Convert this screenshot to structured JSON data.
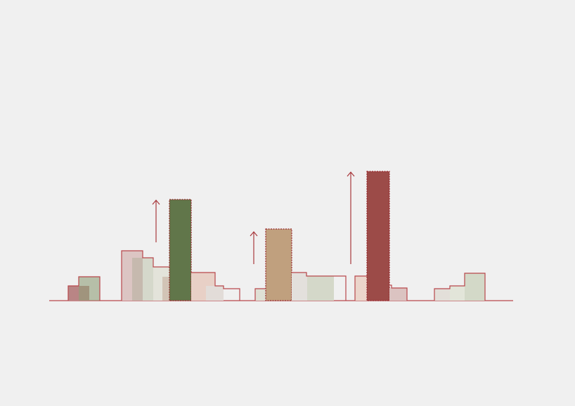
{
  "colors": {
    "background": "#f0f0f0",
    "outline": "#b8474b",
    "tower_green": "#61764a",
    "tower_tan": "#c0a07e",
    "tower_red": "#9c4b48"
  },
  "icons": [
    "arrow-up-icon",
    "arrow-up-icon",
    "arrow-up-icon"
  ]
}
